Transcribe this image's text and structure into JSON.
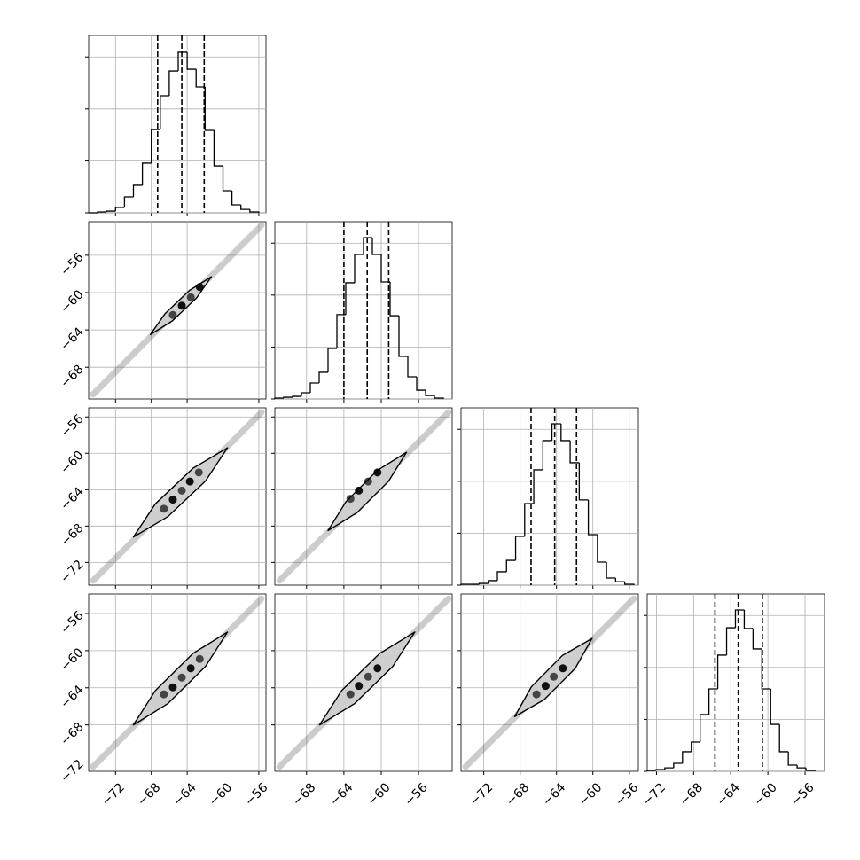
{
  "chart_data": {
    "type": "corner",
    "hist_ylim": [
      0,
      1024
    ],
    "hist_yticks": [
      0,
      300,
      600,
      900
    ],
    "grid": true,
    "params": [
      {
        "lim": [
          -75,
          -55.2
        ],
        "ticks": [
          {
            "value": -72,
            "label": "−72"
          },
          {
            "value": -68,
            "label": "−68"
          },
          {
            "value": -64,
            "label": "−64"
          },
          {
            "value": -60,
            "label": "−60"
          },
          {
            "value": -56,
            "label": "−56"
          }
        ]
      },
      {
        "lim": [
          -71.4,
          -52.4
        ],
        "ticks": [
          {
            "value": -68,
            "label": "−68"
          },
          {
            "value": -64,
            "label": "−64"
          },
          {
            "value": -60,
            "label": "−60"
          },
          {
            "value": -56,
            "label": "−56"
          }
        ]
      },
      {
        "lim": [
          -74.5,
          -55
        ],
        "ticks": [
          {
            "value": -72,
            "label": "−72"
          },
          {
            "value": -68,
            "label": "−68"
          },
          {
            "value": -64,
            "label": "−64"
          },
          {
            "value": -60,
            "label": "−60"
          },
          {
            "value": -56,
            "label": "−56"
          }
        ]
      },
      {
        "lim": [
          -73,
          -53.9
        ],
        "ticks": [
          {
            "value": -72,
            "label": "−72"
          },
          {
            "value": -68,
            "label": "−68"
          },
          {
            "value": -64,
            "label": "−64"
          },
          {
            "value": -60,
            "label": "−60"
          },
          {
            "value": -56,
            "label": "−56"
          }
        ]
      }
    ],
    "histograms": [
      {
        "bins": [
          -75,
          -74,
          -73,
          -72,
          -71,
          -70,
          -69,
          -68,
          -67,
          -66,
          -65,
          -64,
          -63,
          -62,
          -61,
          -60,
          -59,
          -58,
          -57,
          -56
        ],
        "counts": [
          0,
          5,
          10,
          31,
          92,
          159,
          287,
          481,
          676,
          819,
          927,
          829,
          727,
          476,
          271,
          128,
          46,
          20,
          5
        ],
        "quantiles": [
          -67.3,
          -64.6,
          -62.1
        ]
      },
      {
        "bins": [
          -71.4,
          -70.45,
          -69.5,
          -68.55,
          -67.6,
          -66.65,
          -65.7,
          -64.75,
          -63.8,
          -62.85,
          -61.9,
          -60.95,
          -60.0,
          -59.05,
          -58.1,
          -57.15,
          -56.2,
          -55.25,
          -54.3,
          -53.35
        ],
        "counts": [
          5,
          10,
          15,
          36,
          92,
          154,
          292,
          487,
          671,
          835,
          932,
          835,
          676,
          481,
          246,
          128,
          51,
          20,
          5
        ],
        "quantiles": [
          -64.0,
          -61.5,
          -59.2
        ]
      },
      {
        "bins": [
          -74.5,
          -73.5,
          -72.5,
          -71.5,
          -70.5,
          -69.5,
          -68.5,
          -67.5,
          -66.5,
          -65.5,
          -64.5,
          -63.5,
          -62.5,
          -61.5,
          -60.5,
          -59.5,
          -58.5,
          -57.5,
          -56.5,
          -55.5
        ],
        "counts": [
          5,
          5,
          10,
          26,
          77,
          143,
          282,
          471,
          666,
          835,
          932,
          835,
          707,
          492,
          292,
          133,
          41,
          20,
          5
        ],
        "quantiles": [
          -66.8,
          -64.2,
          -61.8
        ]
      },
      {
        "bins": [
          -73,
          -72.05,
          -71.1,
          -70.15,
          -69.2,
          -68.25,
          -67.3,
          -66.35,
          -65.4,
          -64.45,
          -63.5,
          -62.55,
          -61.6,
          -60.65,
          -59.7,
          -58.75,
          -57.8,
          -56.85,
          -55.9,
          -54.95
        ],
        "counts": [
          5,
          10,
          20,
          46,
          113,
          169,
          328,
          476,
          671,
          829,
          932,
          825,
          707,
          476,
          271,
          113,
          36,
          20,
          5
        ],
        "quantiles": [
          -65.7,
          -63.2,
          -60.6
        ]
      }
    ],
    "pairs": [
      [
        {
          "cloud_x": [
            -74.5,
            -55.7
          ],
          "cloud_y": [
            -70.9,
            -52.8
          ],
          "contour_x": [
            -68.1,
            -65.66,
            -62.94,
            -61.3,
            -63.74,
            -66.46
          ],
          "contour_y": [
            -64.5,
            -63.04,
            -60.56,
            -58.3,
            -59.76,
            -62.24
          ],
          "dots_x": [
            -65.6,
            -64.6,
            -63.6,
            -62.6
          ],
          "dots_y": [
            -62.4,
            -61.4,
            -60.5,
            -59.4
          ]
        }
      ],
      [
        {
          "cloud_x": [
            -74.5,
            -55.7
          ],
          "cloud_y": [
            -74.0,
            -55.5
          ],
          "contour_x": [
            -70.0,
            -66.15,
            -61.95,
            -59.5,
            -63.35,
            -67.55
          ],
          "contour_y": [
            -69.2,
            -66.96,
            -63.04,
            -59.4,
            -61.64,
            -65.56
          ],
          "dots_x": [
            -66.6,
            -65.6,
            -64.6,
            -63.7,
            -62.7
          ],
          "dots_y": [
            -66.1,
            -65.1,
            -64.1,
            -63.1,
            -62.1
          ]
        },
        {
          "cloud_x": [
            -70.9,
            -52.8
          ],
          "cloud_y": [
            -74.0,
            -55.5
          ],
          "contour_x": [
            -65.7,
            -62.58,
            -59.22,
            -57.3,
            -60.42,
            -63.78
          ],
          "contour_y": [
            -68.5,
            -66.52,
            -63.08,
            -59.9,
            -61.88,
            -65.32
          ],
          "dots_x": [
            -63.3,
            -62.4,
            -61.4,
            -60.4
          ],
          "dots_y": [
            -65.0,
            -64.1,
            -63.1,
            -62.1
          ]
        }
      ],
      [
        {
          "cloud_x": [
            -74.5,
            -55.7
          ],
          "cloud_y": [
            -72.5,
            -54.4
          ],
          "contour_x": [
            -70.0,
            -66.15,
            -61.95,
            -59.5,
            -63.35,
            -67.55
          ],
          "contour_y": [
            -68.0,
            -65.7,
            -61.7,
            -58.0,
            -60.3,
            -64.3
          ],
          "dots_x": [
            -66.6,
            -65.6,
            -64.6,
            -63.6,
            -62.6
          ],
          "dots_y": [
            -64.7,
            -63.95,
            -62.9,
            -61.9,
            -60.9
          ]
        },
        {
          "cloud_x": [
            -70.9,
            -52.8
          ],
          "cloud_y": [
            -72.5,
            -54.4
          ],
          "contour_x": [
            -66.6,
            -62.84,
            -58.76,
            -56.4,
            -60.16,
            -64.24
          ],
          "contour_y": [
            -68.0,
            -65.7,
            -61.7,
            -58.0,
            -60.3,
            -64.3
          ],
          "dots_x": [
            -63.3,
            -62.4,
            -61.4,
            -60.4
          ],
          "dots_y": [
            -64.7,
            -63.8,
            -62.8,
            -61.9
          ]
        },
        {
          "cloud_x": [
            -74.0,
            -55.5
          ],
          "cloud_y": [
            -72.5,
            -54.4
          ],
          "contour_x": [
            -68.6,
            -65.35,
            -61.95,
            -60.1,
            -63.35,
            -66.75
          ],
          "contour_y": [
            -67.1,
            -65.28,
            -61.92,
            -58.7,
            -60.52,
            -63.88
          ],
          "dots_x": [
            -66.2,
            -65.2,
            -64.3,
            -63.3
          ],
          "dots_y": [
            -64.7,
            -63.8,
            -62.8,
            -61.9
          ]
        }
      ]
    ]
  }
}
